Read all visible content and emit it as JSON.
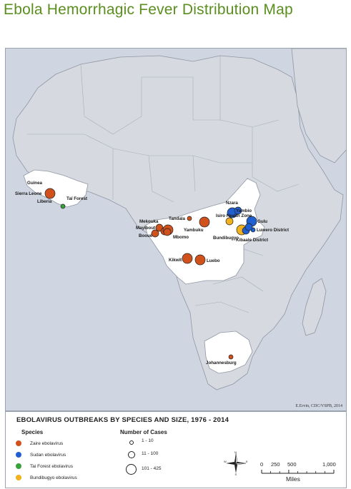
{
  "title": "Ebola Hemorrhagic Fever Distribution Map",
  "credit": "E.Ervin, CDC/VSPB, 2014",
  "colors": {
    "ocean": "#cfd6e2",
    "land": "#d6d9df",
    "highlight_land": "#ffffff",
    "border": "#8f97a3",
    "zaire": "#d1511d",
    "sudan": "#1f5fcf",
    "tai_forest": "#3aa23a",
    "bundibugyo": "#f2b21d"
  },
  "places": [
    {
      "label": "Guinea"
    },
    {
      "label": "Sierra Leone"
    },
    {
      "label": "Liberia"
    },
    {
      "label": "Taï Forest"
    },
    {
      "label": "Mekouka"
    },
    {
      "label": "Mayibout"
    },
    {
      "label": "Booué"
    },
    {
      "label": "Mbomo"
    },
    {
      "label": "Tandala"
    },
    {
      "label": "Yambuku"
    },
    {
      "label": "Isiro Health Zone"
    },
    {
      "label": "Nzara"
    },
    {
      "label": "Yambio"
    },
    {
      "label": "Gulu"
    },
    {
      "label": "Luwero District"
    },
    {
      "label": "Bundibugyo"
    },
    {
      "label": "Kibaale District"
    },
    {
      "label": "Kikwit"
    },
    {
      "label": "Luebo"
    },
    {
      "label": "Johannesburg"
    }
  ],
  "outbreaks": [
    {
      "place": "Sierra Leone / Guinea / Liberia",
      "species": "zaire",
      "size": "101 - 425"
    },
    {
      "place": "Taï Forest",
      "species": "tai_forest",
      "size": "1 - 10"
    },
    {
      "place": "Mekouka",
      "species": "zaire",
      "size": "11 - 100"
    },
    {
      "place": "Mayibout",
      "species": "zaire",
      "size": "11 - 100"
    },
    {
      "place": "Booué",
      "species": "zaire",
      "size": "11 - 100"
    },
    {
      "place": "Mbomo",
      "species": "zaire",
      "size": "101 - 425"
    },
    {
      "place": "Mbomo",
      "species": "zaire",
      "size": "11 - 100"
    },
    {
      "place": "Tandala",
      "species": "zaire",
      "size": "1 - 10"
    },
    {
      "place": "Yambuku",
      "species": "zaire",
      "size": "101 - 425"
    },
    {
      "place": "Isiro Health Zone",
      "species": "bundibugyo",
      "size": "11 - 100"
    },
    {
      "place": "Nzara",
      "species": "sudan",
      "size": "101 - 425"
    },
    {
      "place": "Yambio",
      "species": "sudan",
      "size": "11 - 100"
    },
    {
      "place": "Gulu",
      "species": "sudan",
      "size": "101 - 425"
    },
    {
      "place": "Luwero District",
      "species": "sudan",
      "size": "1 - 10"
    },
    {
      "place": "Bundibugyo",
      "species": "bundibugyo",
      "size": "101 - 425"
    },
    {
      "place": "Kibaale District",
      "species": "sudan",
      "size": "11 - 100"
    },
    {
      "place": "Kibaale District",
      "species": "sudan",
      "size": "11 - 100"
    },
    {
      "place": "Kikwit",
      "species": "zaire",
      "size": "101 - 425"
    },
    {
      "place": "Luebo",
      "species": "zaire",
      "size": "101 - 425"
    },
    {
      "place": "Johannesburg",
      "species": "zaire",
      "size": "1 - 10"
    }
  ],
  "legend": {
    "title": "EBOLAVIRUS OUTBREAKS BY SPECIES AND SIZE, 1976 - 2014",
    "species_heading": "Species",
    "species": [
      {
        "key": "zaire",
        "label": "Zaire ebolavirus"
      },
      {
        "key": "sudan",
        "label": "Sudan ebolavirus"
      },
      {
        "key": "tai_forest",
        "label": "Tai Forest ebolavirus"
      },
      {
        "key": "bundibugyo",
        "label": "Bundibugyo ebolavirus"
      }
    ],
    "cases_heading": "Number of Cases",
    "sizes": [
      "1 - 10",
      "11 - 100",
      "101 - 425"
    ],
    "compass_icon": "north-arrow-compass-icon",
    "compass_letters": [
      "N",
      "E",
      "S",
      "W"
    ],
    "scale_ticks": [
      "0",
      "250",
      "500",
      "1,000"
    ],
    "scale_unit": "Miles"
  }
}
